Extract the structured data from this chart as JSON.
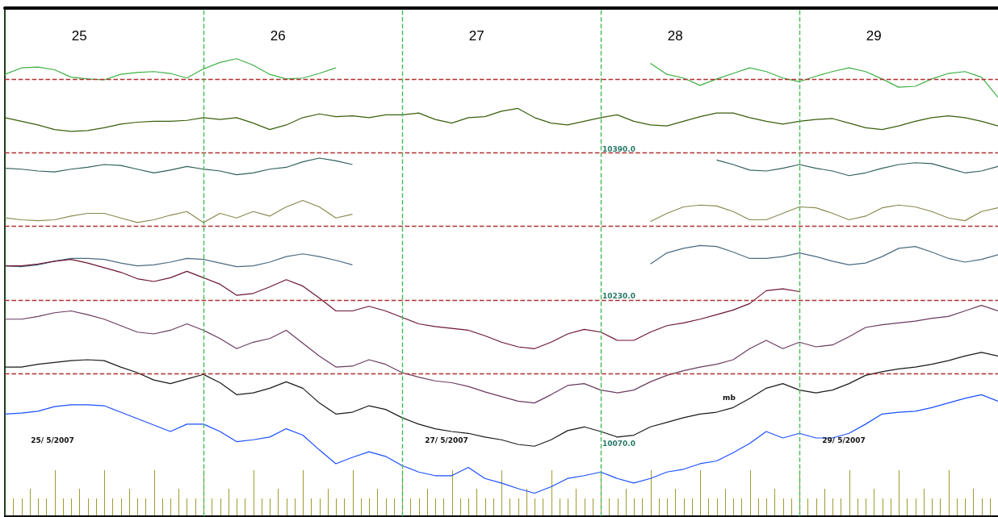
{
  "chart_data": {
    "type": "line",
    "x": [
      "2007-05-25T00:00",
      "2007-05-25T02:00",
      "2007-05-25T04:00",
      "2007-05-25T06:00",
      "2007-05-25T08:00",
      "2007-05-25T10:00",
      "2007-05-25T12:00",
      "2007-05-25T14:00",
      "2007-05-25T16:00",
      "2007-05-25T18:00",
      "2007-05-25T20:00",
      "2007-05-25T22:00",
      "2007-05-26T00:00",
      "2007-05-26T02:00",
      "2007-05-26T04:00",
      "2007-05-26T06:00",
      "2007-05-26T08:00",
      "2007-05-26T10:00",
      "2007-05-26T12:00",
      "2007-05-26T14:00",
      "2007-05-26T16:00",
      "2007-05-26T18:00",
      "2007-05-26T20:00",
      "2007-05-26T22:00",
      "2007-05-27T00:00",
      "2007-05-27T02:00",
      "2007-05-27T04:00",
      "2007-05-27T06:00",
      "2007-05-27T08:00",
      "2007-05-27T10:00",
      "2007-05-27T12:00",
      "2007-05-27T14:00",
      "2007-05-27T16:00",
      "2007-05-27T18:00",
      "2007-05-27T20:00",
      "2007-05-27T22:00",
      "2007-05-28T00:00",
      "2007-05-28T02:00",
      "2007-05-28T04:00",
      "2007-05-28T06:00",
      "2007-05-28T08:00",
      "2007-05-28T10:00",
      "2007-05-28T12:00",
      "2007-05-28T14:00",
      "2007-05-28T16:00",
      "2007-05-28T18:00",
      "2007-05-28T20:00",
      "2007-05-28T22:00",
      "2007-05-29T00:00",
      "2007-05-29T02:00",
      "2007-05-29T04:00",
      "2007-05-29T06:00",
      "2007-05-29T08:00",
      "2007-05-29T10:00",
      "2007-05-29T12:00",
      "2007-05-29T14:00",
      "2007-05-29T16:00",
      "2007-05-29T18:00",
      "2007-05-29T20:00",
      "2007-05-29T22:00",
      "2007-05-30T00:00"
    ],
    "series": [
      {
        "color": "#3cb043",
        "values": [
          10475,
          10482,
          10483,
          10480,
          10472,
          10470,
          10469,
          10475,
          10477,
          10478,
          10476,
          10471,
          10481,
          10488,
          10492,
          10485,
          10475,
          10470,
          10471,
          10476,
          10482,
          null,
          null,
          null,
          null,
          null,
          null,
          null,
          null,
          null,
          null,
          null,
          null,
          null,
          null,
          null,
          null,
          null,
          null,
          10487,
          10475,
          10471,
          10463,
          10470,
          10476,
          10482,
          10478,
          10471,
          10467,
          10473,
          10478,
          10482,
          10478,
          10470,
          10461,
          10462,
          10470,
          10476,
          10478,
          10472,
          10450
        ]
      },
      {
        "color": "#3a5f0b",
        "values": [
          10428,
          10424,
          10420,
          10415,
          10413,
          10414,
          10417,
          10421,
          10423,
          10424,
          10424,
          10425,
          10428,
          10426,
          10428,
          10422,
          10415,
          10420,
          10428,
          10432,
          10429,
          10430,
          10428,
          10431,
          10431,
          10433,
          10426,
          10422,
          10428,
          10429,
          10435,
          10438,
          10428,
          10422,
          10420,
          10424,
          10428,
          10431,
          10424,
          10420,
          10419,
          10424,
          10429,
          10433,
          10433,
          10428,
          10424,
          10421,
          10424,
          10426,
          10427,
          10422,
          10417,
          10415,
          10419,
          10424,
          10428,
          10430,
          10428,
          10424,
          10419
        ]
      },
      {
        "color": "#2f5f5a",
        "values": [
          10373,
          10372,
          10370,
          10369,
          10372,
          10374,
          10377,
          10376,
          10372,
          10368,
          10371,
          10375,
          10372,
          10370,
          10366,
          10368,
          10372,
          10374,
          10380,
          10384,
          10381,
          10377,
          null,
          null,
          null,
          null,
          null,
          null,
          null,
          null,
          null,
          null,
          null,
          null,
          null,
          null,
          null,
          null,
          null,
          null,
          null,
          null,
          null,
          10382,
          10377,
          10371,
          10370,
          10373,
          10377,
          10373,
          10370,
          10365,
          10368,
          10373,
          10377,
          10379,
          10378,
          10373,
          10368,
          10370,
          10375
        ]
      },
      {
        "color": "#8a8a50",
        "values": [
          10319,
          10317,
          10316,
          10317,
          10321,
          10324,
          10324,
          10319,
          10314,
          10317,
          10322,
          10326,
          10314,
          10324,
          10319,
          10326,
          10321,
          10331,
          10338,
          10331,
          10319,
          10323,
          null,
          null,
          null,
          null,
          null,
          null,
          null,
          null,
          null,
          null,
          null,
          null,
          null,
          null,
          null,
          null,
          null,
          10315,
          10324,
          10331,
          10333,
          10332,
          10326,
          10317,
          10317,
          10324,
          10331,
          10330,
          10324,
          10317,
          10321,
          10330,
          10333,
          10331,
          10326,
          10319,
          10316,
          10326,
          10330
        ]
      },
      {
        "color": "#4a6a80",
        "values": [
          10267,
          10266,
          10268,
          10272,
          10275,
          10275,
          10274,
          10270,
          10267,
          10268,
          10271,
          10275,
          10274,
          10270,
          10266,
          10267,
          10271,
          10277,
          10280,
          10277,
          10273,
          10268,
          null,
          null,
          null,
          null,
          null,
          null,
          null,
          null,
          null,
          null,
          null,
          null,
          null,
          null,
          null,
          null,
          null,
          10269,
          10281,
          10286,
          10289,
          10288,
          10282,
          10275,
          10275,
          10277,
          10281,
          10277,
          10272,
          10268,
          10270,
          10277,
          10286,
          10288,
          10282,
          10275,
          10271,
          10274,
          10279
        ]
      },
      {
        "color": "#6b1530",
        "values": [
          10267,
          10267,
          10269,
          10272,
          10274,
          10270,
          10265,
          10260,
          10253,
          10250,
          10254,
          10261,
          10254,
          10247,
          10235,
          10237,
          10244,
          10252,
          10245,
          10232,
          10218,
          10218,
          10223,
          10218,
          10211,
          10204,
          10201,
          10199,
          10197,
          10191,
          10184,
          10179,
          10177,
          10184,
          10193,
          10198,
          10195,
          10186,
          10186,
          10195,
          10202,
          10205,
          10209,
          10214,
          10219,
          10226,
          10240,
          10242,
          10239,
          null,
          null,
          null,
          null,
          null,
          null,
          null,
          null,
          null,
          null,
          null,
          null
        ]
      },
      {
        "color": "#6a3a5f",
        "values": [
          10209,
          10209,
          10212,
          10216,
          10218,
          10214,
          10209,
          10202,
          10195,
          10193,
          10197,
          10204,
          10197,
          10188,
          10177,
          10184,
          10188,
          10197,
          10183,
          10169,
          10157,
          10158,
          10165,
          10160,
          10151,
          10146,
          10142,
          10140,
          10136,
          10130,
          10125,
          10120,
          10118,
          10127,
          10137,
          10139,
          10132,
          10129,
          10132,
          10141,
          10148,
          10153,
          10157,
          10160,
          10165,
          10177,
          10186,
          10177,
          10184,
          10179,
          10181,
          10190,
          10200,
          10203,
          10205,
          10207,
          10210,
          10212,
          10218,
          10224,
          10218
        ]
      },
      {
        "color": "#1a1a1a",
        "values": [
          10157,
          10157,
          10160,
          10162,
          10164,
          10165,
          10164,
          10157,
          10151,
          10143,
          10139,
          10144,
          10149,
          10140,
          10127,
          10129,
          10134,
          10141,
          10134,
          10118,
          10106,
          10108,
          10115,
          10111,
          10102,
          10095,
          10090,
          10087,
          10085,
          10081,
          10078,
          10073,
          10071,
          10078,
          10088,
          10092,
          10087,
          10081,
          10083,
          10092,
          10097,
          10102,
          10106,
          10108,
          10113,
          10123,
          10134,
          10139,
          10132,
          10129,
          10132,
          10139,
          10148,
          10152,
          10155,
          10157,
          10160,
          10164,
          10169,
          10173,
          10169
        ]
      },
      {
        "color": "#1a4fff",
        "values": [
          10106,
          10107,
          10109,
          10114,
          10116,
          10116,
          10115,
          10108,
          10101,
          10094,
          10087,
          10095,
          10095,
          10087,
          10076,
          10078,
          10081,
          10090,
          10083,
          10067,
          10052,
          10059,
          10065,
          10060,
          10050,
          10043,
          10039,
          10039,
          10048,
          10036,
          10031,
          10025,
          10020,
          10027,
          10036,
          10039,
          10043,
          10036,
          10031,
          10036,
          10043,
          10046,
          10052,
          10055,
          10064,
          10074,
          10087,
          10080,
          10085,
          10080,
          10080,
          10085,
          10095,
          10106,
          10108,
          10109,
          10113,
          10118,
          10123,
          10127,
          10120
        ]
      }
    ],
    "xlim": [
      "2007-05-25T00:00",
      "2007-05-30T00:00"
    ],
    "xticks": [
      {
        "value": "2007-05-25T09:00",
        "label": "25"
      },
      {
        "value": "2007-05-26T09:00",
        "label": "26"
      },
      {
        "value": "2007-05-27T09:00",
        "label": "27"
      },
      {
        "value": "2007-05-28T09:00",
        "label": "28"
      },
      {
        "value": "2007-05-29T09:00",
        "label": "29"
      }
    ],
    "ylim": [
      9995,
      10547
    ],
    "yticks": [
      {
        "value": 10070,
        "label": "10070.0"
      },
      {
        "value": 10230,
        "label": "10230.0"
      },
      {
        "value": 10390,
        "label": "10390.0"
      }
    ],
    "ref_lines": [
      {
        "axis": "y",
        "value": 10470,
        "label": null,
        "color": "#b03030",
        "line_style": "dashed"
      },
      {
        "axis": "y",
        "value": 10390,
        "label": null,
        "color": "#b03030",
        "line_style": "dashed"
      },
      {
        "axis": "y",
        "value": 10310,
        "label": null,
        "color": "#b03030",
        "line_style": "dashed"
      },
      {
        "axis": "y",
        "value": 10230,
        "label": null,
        "color": "#b03030",
        "line_style": "dashed"
      },
      {
        "axis": "y",
        "value": 10150,
        "label": null,
        "color": "#b03030",
        "line_style": "dashed"
      },
      {
        "axis": "x",
        "value": "2007-05-26T00:00",
        "label": null,
        "color": "#44bb55",
        "line_style": "dashed"
      },
      {
        "axis": "x",
        "value": "2007-05-27T00:00",
        "label": null,
        "color": "#44bb55",
        "line_style": "dashed"
      },
      {
        "axis": "x",
        "value": "2007-05-28T00:00",
        "label": null,
        "color": "#44bb55",
        "line_style": "dashed"
      },
      {
        "axis": "x",
        "value": "2007-05-29T00:00",
        "label": null,
        "color": "#44bb55",
        "line_style": "dashed"
      }
    ],
    "annotations": [
      "25/ 5/2007",
      "27/ 5/2007",
      "29/ 5/2007",
      "mb"
    ],
    "marker": "none",
    "line_style": "solid"
  }
}
